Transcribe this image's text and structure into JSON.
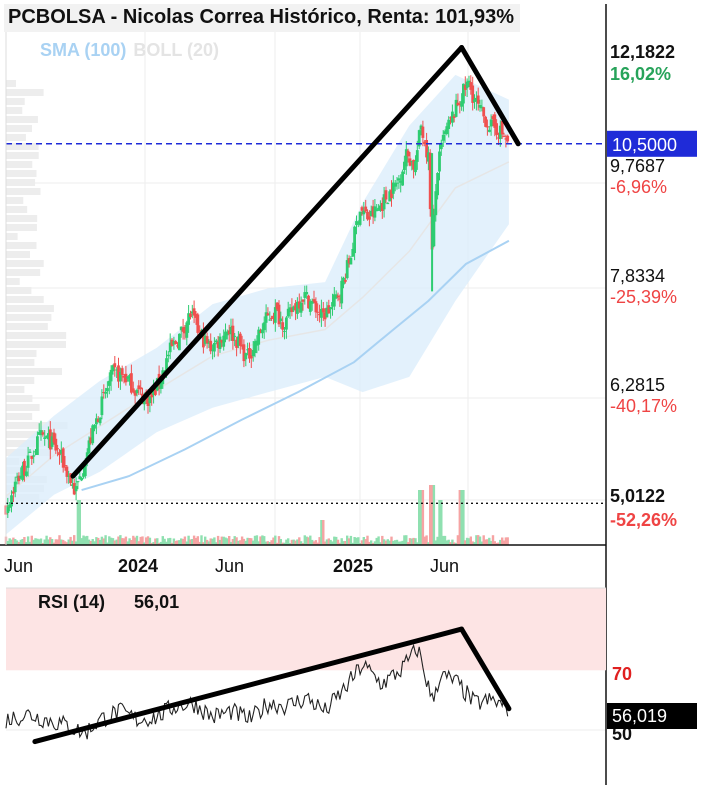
{
  "title": "PCBOLSA - Nicolas Correa Histórico, Renta: 101,93%",
  "legend": {
    "sma": "SMA (100)",
    "boll": "BOLL (20)"
  },
  "colors": {
    "up": "#2ecc71",
    "down": "#f0504f",
    "sma": "#a9d2f3",
    "band": "#d9ecfb",
    "pos_text": "#27a35a",
    "neg_text": "#ef4444",
    "current_line": "#1f2bd8",
    "rsi_zone": "#fde4e4",
    "rsi_70_label": "#e02020"
  },
  "price_axis": {
    "labels": [
      {
        "price": "12,1822",
        "pct": "16,02%",
        "pct_color": "pos"
      },
      {
        "price": "9,7687",
        "pct": "-6,96%",
        "pct_color": "neg"
      },
      {
        "price": "7,8334",
        "pct": "-25,39%",
        "pct_color": "neg"
      },
      {
        "price": "6,2815",
        "pct": "-40,17%",
        "pct_color": "neg"
      },
      {
        "price": "5,0122",
        "pct": "-52,26%",
        "pct_color": "neg"
      }
    ],
    "current_price": "10,5000"
  },
  "x_axis": {
    "labels": [
      "Jun",
      "2024",
      "Jun",
      "2025",
      "Jun"
    ]
  },
  "rsi": {
    "title": "RSI (14)",
    "value": "56,01",
    "current": "56,019",
    "level_70": "70",
    "level_50": "50"
  },
  "chart_data": {
    "type": "candlestick",
    "title": "PCBOLSA - Nicolas Correa Histórico, Renta: 101,93%",
    "y_scale": "log",
    "ylim": [
      4.6,
      13.0
    ],
    "x_range": [
      "2023-05-15",
      "2025-09-10"
    ],
    "reference_lines": [
      {
        "value": 10.5,
        "label": "10,5000",
        "style": "dashed-blue"
      },
      {
        "value": 5.0122,
        "label": "5,0122",
        "style": "dotted-black"
      }
    ],
    "price_path": [
      [
        "2023-05-15",
        4.95
      ],
      [
        "2023-06-01",
        5.25
      ],
      [
        "2023-06-20",
        5.45
      ],
      [
        "2023-07-10",
        5.75
      ],
      [
        "2023-07-25",
        5.7
      ],
      [
        "2023-08-10",
        5.55
      ],
      [
        "2023-08-25",
        5.3
      ],
      [
        "2023-09-05",
        5.12
      ],
      [
        "2023-09-15",
        5.35
      ],
      [
        "2023-10-01",
        5.75
      ],
      [
        "2023-10-20",
        6.2
      ],
      [
        "2023-11-05",
        6.55
      ],
      [
        "2023-11-25",
        6.5
      ],
      [
        "2023-12-15",
        6.3
      ],
      [
        "2024-01-05",
        6.2
      ],
      [
        "2024-01-20",
        6.45
      ],
      [
        "2024-02-05",
        6.85
      ],
      [
        "2024-02-20",
        7.05
      ],
      [
        "2024-03-10",
        7.4
      ],
      [
        "2024-03-25",
        7.1
      ],
      [
        "2024-04-10",
        6.9
      ],
      [
        "2024-04-25",
        7.0
      ],
      [
        "2024-05-10",
        7.2
      ],
      [
        "2024-05-25",
        7.0
      ],
      [
        "2024-06-10",
        6.75
      ],
      [
        "2024-06-25",
        7.0
      ],
      [
        "2024-07-10",
        7.3
      ],
      [
        "2024-07-25",
        7.45
      ],
      [
        "2024-08-10",
        7.25
      ],
      [
        "2024-08-25",
        7.5
      ],
      [
        "2024-09-10",
        7.7
      ],
      [
        "2024-09-25",
        7.55
      ],
      [
        "2024-10-10",
        7.35
      ],
      [
        "2024-10-25",
        7.5
      ],
      [
        "2024-11-10",
        7.8
      ],
      [
        "2024-11-25",
        8.3
      ],
      [
        "2024-12-10",
        9.2
      ],
      [
        "2024-12-25",
        9.0
      ],
      [
        "2025-01-10",
        9.2
      ],
      [
        "2025-01-25",
        9.45
      ],
      [
        "2025-02-10",
        9.7
      ],
      [
        "2025-02-25",
        10.3
      ],
      [
        "2025-03-10",
        10.0
      ],
      [
        "2025-03-20",
        10.9
      ],
      [
        "2025-04-01",
        10.2
      ],
      [
        "2025-04-07",
        8.4
      ],
      [
        "2025-04-15",
        9.9
      ],
      [
        "2025-04-25",
        10.6
      ],
      [
        "2025-05-10",
        11.1
      ],
      [
        "2025-05-25",
        11.6
      ],
      [
        "2025-06-05",
        11.9
      ],
      [
        "2025-06-15",
        11.5
      ],
      [
        "2025-06-25",
        11.2
      ],
      [
        "2025-07-10",
        10.9
      ],
      [
        "2025-07-25",
        10.8
      ],
      [
        "2025-08-10",
        10.5
      ]
    ],
    "sma_100": [
      [
        "2023-09-15",
        5.15
      ],
      [
        "2023-12-01",
        5.3
      ],
      [
        "2024-03-01",
        5.6
      ],
      [
        "2024-06-01",
        5.95
      ],
      [
        "2024-09-01",
        6.3
      ],
      [
        "2024-12-01",
        6.7
      ],
      [
        "2025-02-01",
        7.15
      ],
      [
        "2025-04-01",
        7.6
      ],
      [
        "2025-06-01",
        8.2
      ],
      [
        "2025-08-10",
        8.6
      ]
    ],
    "bollinger": {
      "upper": [
        [
          "2023-05-15",
          5.5
        ],
        [
          "2023-08-01",
          6.0
        ],
        [
          "2023-10-15",
          6.45
        ],
        [
          "2024-01-15",
          6.9
        ],
        [
          "2024-04-15",
          7.55
        ],
        [
          "2024-07-15",
          7.8
        ],
        [
          "2024-10-15",
          7.9
        ],
        [
          "2024-12-15",
          9.3
        ],
        [
          "2025-03-01",
          10.9
        ],
        [
          "2025-05-15",
          12.1
        ],
        [
          "2025-08-10",
          11.5
        ]
      ],
      "lower": [
        [
          "2023-05-15",
          4.7
        ],
        [
          "2023-08-01",
          5.1
        ],
        [
          "2023-10-15",
          5.35
        ],
        [
          "2024-01-15",
          5.8
        ],
        [
          "2024-04-15",
          6.1
        ],
        [
          "2024-07-15",
          6.3
        ],
        [
          "2024-10-15",
          6.5
        ],
        [
          "2024-12-15",
          6.3
        ],
        [
          "2025-03-01",
          6.5
        ],
        [
          "2025-05-15",
          7.6
        ],
        [
          "2025-08-10",
          8.9
        ]
      ]
    },
    "trendlines": [
      {
        "points": [
          [
            "2023-09-01",
            5.3
          ],
          [
            "2025-05-25",
            12.8
          ]
        ]
      },
      {
        "points": [
          [
            "2025-05-25",
            12.8
          ],
          [
            "2025-08-25",
            10.5
          ]
        ]
      }
    ],
    "rsi": {
      "period": 14,
      "ylim": [
        30,
        100
      ],
      "overbought": 70,
      "values": [
        [
          "2023-05-15",
          52
        ],
        [
          "2023-06-20",
          54
        ],
        [
          "2023-07-20",
          52
        ],
        [
          "2023-08-20",
          50
        ],
        [
          "2023-09-20",
          47
        ],
        [
          "2023-10-15",
          52
        ],
        [
          "2023-11-15",
          55
        ],
        [
          "2023-12-15",
          52
        ],
        [
          "2024-01-15",
          53
        ],
        [
          "2024-02-15",
          57
        ],
        [
          "2024-03-15",
          58
        ],
        [
          "2024-04-15",
          53
        ],
        [
          "2024-05-15",
          55
        ],
        [
          "2024-06-15",
          52
        ],
        [
          "2024-07-15",
          58
        ],
        [
          "2024-08-15",
          57
        ],
        [
          "2024-09-15",
          60
        ],
        [
          "2024-10-15",
          55
        ],
        [
          "2024-11-15",
          63
        ],
        [
          "2024-12-15",
          72
        ],
        [
          "2025-01-15",
          65
        ],
        [
          "2025-02-15",
          70
        ],
        [
          "2025-03-15",
          78
        ],
        [
          "2025-04-07",
          59
        ],
        [
          "2025-04-20",
          68
        ],
        [
          "2025-05-15",
          66
        ],
        [
          "2025-06-15",
          58
        ],
        [
          "2025-07-15",
          59
        ],
        [
          "2025-08-10",
          56
        ]
      ],
      "trendlines": [
        {
          "points": [
            [
              "2023-07-01",
              44
            ],
            [
              "2025-05-25",
              85
            ]
          ]
        },
        {
          "points": [
            [
              "2025-05-25",
              85
            ],
            [
              "2025-08-10",
              56
            ]
          ]
        }
      ]
    },
    "volume": {
      "spikes": [
        [
          "2023-09-10",
          0.45
        ],
        [
          "2024-10-10",
          0.25
        ],
        [
          "2025-03-20",
          0.55
        ],
        [
          "2025-04-07",
          0.6
        ],
        [
          "2025-04-20",
          0.45
        ],
        [
          "2025-05-25",
          0.55
        ]
      ]
    }
  }
}
